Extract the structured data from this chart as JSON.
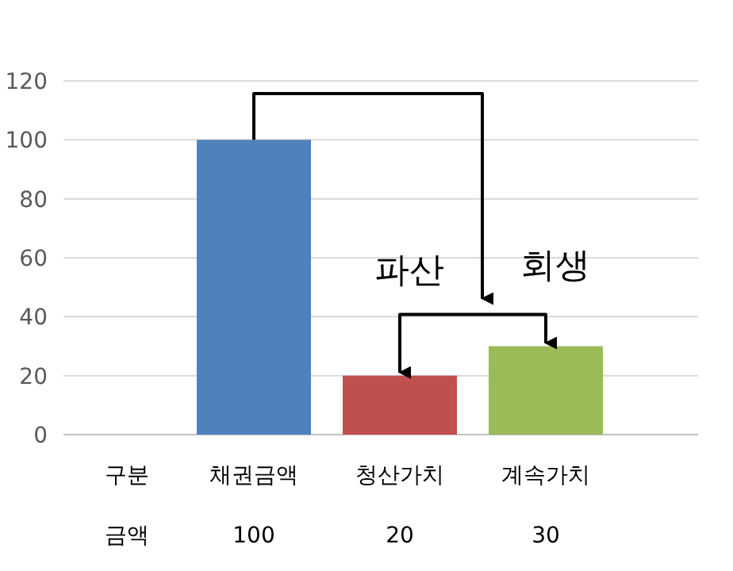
{
  "chart_data": {
    "type": "bar",
    "categories": [
      "채권금액",
      "청산가치",
      "계속가치"
    ],
    "values": [
      100,
      20,
      30
    ],
    "colors": [
      "#4f81bd",
      "#c0504d",
      "#9bbb59"
    ],
    "ylim": [
      0,
      120
    ],
    "yticks": [
      0,
      20,
      40,
      60,
      80,
      100,
      120
    ],
    "grid": "y",
    "data_labels": true,
    "annotations": [
      "구분",
      "금액",
      "파산",
      "회생"
    ]
  }
}
